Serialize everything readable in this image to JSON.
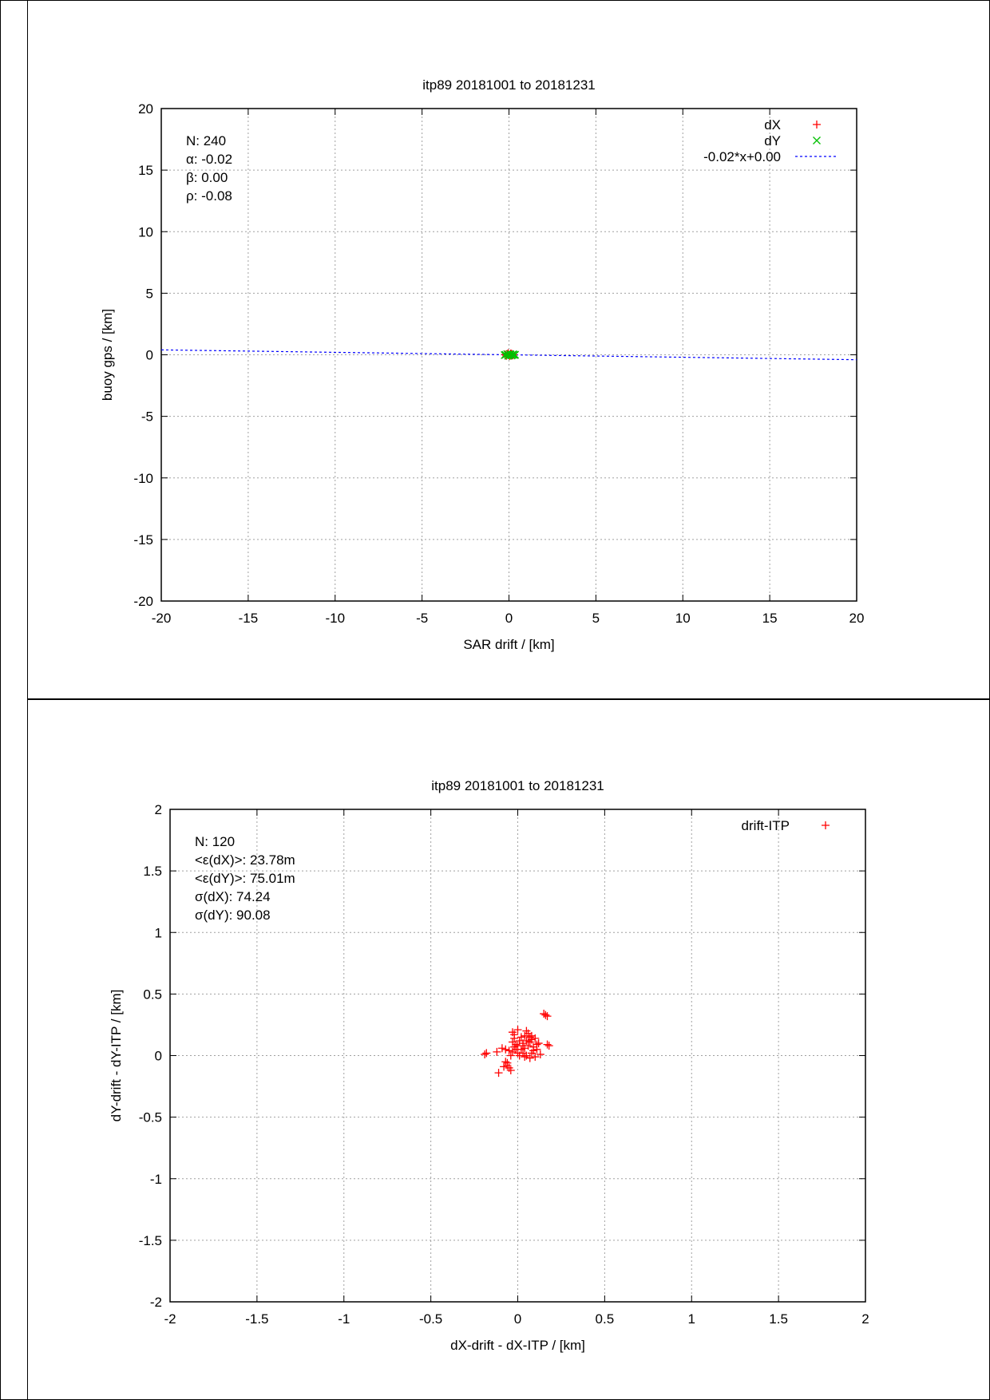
{
  "chart_data": [
    {
      "type": "scatter",
      "title": "itp89 20181001 to 20181231",
      "xlabel": "SAR drift / [km]",
      "ylabel": "buoy gps / [km]",
      "xlim": [
        -20,
        20
      ],
      "ylim": [
        -20,
        20
      ],
      "xticks": [
        "-20",
        "-15",
        "-10",
        "-5",
        "0",
        "5",
        "10",
        "15",
        "20"
      ],
      "yticks": [
        "-20",
        "-15",
        "-10",
        "-5",
        "0",
        "5",
        "10",
        "15",
        "20"
      ],
      "xtick_values": [
        -20,
        -15,
        -10,
        -5,
        0,
        5,
        10,
        15,
        20
      ],
      "ytick_values": [
        -20,
        -15,
        -10,
        -5,
        0,
        5,
        10,
        15,
        20
      ],
      "grid": true,
      "legend_position": "top-right",
      "stats": [
        "N: 240",
        "α: -0.02",
        "β: 0.00",
        "ρ: -0.08"
      ],
      "series": [
        {
          "name": "dX",
          "marker": "+",
          "color": "#ff0000",
          "points": [
            [
              -0.1,
              0.05
            ],
            [
              0.0,
              0.0
            ],
            [
              0.1,
              0.1
            ],
            [
              0.2,
              -0.05
            ],
            [
              -0.2,
              0.02
            ],
            [
              0.05,
              -0.1
            ],
            [
              0.15,
              0.08
            ],
            [
              -0.05,
              0.12
            ],
            [
              0.25,
              0.0
            ],
            [
              -0.15,
              -0.08
            ]
          ]
        },
        {
          "name": "dY",
          "marker": "x",
          "color": "#00c000",
          "points": [
            [
              -0.2,
              0.0
            ],
            [
              -0.1,
              0.05
            ],
            [
              0.0,
              -0.05
            ],
            [
              0.1,
              0.02
            ],
            [
              0.2,
              0.0
            ],
            [
              0.3,
              -0.02
            ],
            [
              -0.25,
              -0.03
            ],
            [
              0.05,
              0.06
            ],
            [
              0.15,
              -0.06
            ],
            [
              -0.05,
              -0.08
            ],
            [
              0.25,
              0.04
            ],
            [
              0.35,
              0.0
            ]
          ]
        }
      ],
      "fit": {
        "name": "-0.02*x+0.00",
        "color": "#0000ff",
        "slope": -0.02,
        "intercept": 0.0
      }
    },
    {
      "type": "scatter",
      "title": "itp89 20181001 to 20181231",
      "xlabel": "dX-drift - dX-ITP / [km]",
      "ylabel": "dY-drift - dY-ITP / [km]",
      "xlim": [
        -2,
        2
      ],
      "ylim": [
        -2,
        2
      ],
      "xticks": [
        "-2",
        "-1.5",
        "-1",
        "-0.5",
        "0",
        "0.5",
        "1",
        "1.5",
        "2"
      ],
      "yticks": [
        "-2",
        "-1.5",
        "-1",
        "-0.5",
        "0",
        "0.5",
        "1",
        "1.5",
        "2"
      ],
      "xtick_values": [
        -2,
        -1.5,
        -1,
        -0.5,
        0,
        0.5,
        1,
        1.5,
        2
      ],
      "ytick_values": [
        -2,
        -1.5,
        -1,
        -0.5,
        0,
        0.5,
        1,
        1.5,
        2
      ],
      "grid": true,
      "legend_position": "top-right",
      "stats": [
        "N: 120",
        "<ε(dX)>:  23.78m",
        "<ε(dY)>: 75.01m",
        "σ(dX):  74.24",
        "σ(dY):  90.08"
      ],
      "series": [
        {
          "name": "drift-ITP",
          "marker": "+",
          "color": "#ff0000",
          "points": [
            [
              0.16,
              0.33
            ],
            [
              0.17,
              0.32
            ],
            [
              0.15,
              0.34
            ],
            [
              -0.03,
              0.19
            ],
            [
              -0.02,
              0.17
            ],
            [
              0.05,
              0.2
            ],
            [
              0.06,
              0.18
            ],
            [
              0.04,
              0.16
            ],
            [
              0.07,
              0.15
            ],
            [
              0.08,
              0.13
            ],
            [
              0.1,
              0.14
            ],
            [
              0.12,
              0.1
            ],
            [
              0.05,
              0.12
            ],
            [
              0.03,
              0.1
            ],
            [
              0.01,
              0.12
            ],
            [
              0.0,
              0.08
            ],
            [
              -0.02,
              0.07
            ],
            [
              -0.01,
              0.05
            ],
            [
              0.02,
              0.05
            ],
            [
              0.04,
              0.06
            ],
            [
              0.06,
              0.08
            ],
            [
              0.09,
              0.07
            ],
            [
              0.11,
              0.05
            ],
            [
              0.08,
              0.02
            ],
            [
              0.05,
              0.0
            ],
            [
              0.03,
              0.02
            ],
            [
              0.0,
              0.02
            ],
            [
              -0.03,
              0.03
            ],
            [
              -0.05,
              0.04
            ],
            [
              -0.07,
              0.05
            ],
            [
              -0.09,
              0.06
            ],
            [
              -0.12,
              0.03
            ],
            [
              -0.18,
              0.02
            ],
            [
              -0.19,
              0.01
            ],
            [
              -0.07,
              -0.05
            ],
            [
              -0.06,
              -0.08
            ],
            [
              -0.05,
              -0.1
            ],
            [
              -0.08,
              -0.09
            ],
            [
              -0.04,
              -0.12
            ],
            [
              -0.11,
              -0.14
            ],
            [
              0.18,
              0.08
            ],
            [
              0.17,
              0.09
            ],
            [
              0.1,
              -0.01
            ],
            [
              0.07,
              -0.02
            ],
            [
              0.04,
              -0.01
            ],
            [
              -0.01,
              0.09
            ],
            [
              0.02,
              0.15
            ],
            [
              0.07,
              0.11
            ],
            [
              0.09,
              0.04
            ],
            [
              0.13,
              0.01
            ],
            [
              -0.02,
              0.14
            ],
            [
              0.0,
              0.21
            ],
            [
              0.06,
              0.12
            ],
            [
              0.03,
              0.08
            ],
            [
              -0.04,
              0.0
            ],
            [
              -0.06,
              -0.06
            ],
            [
              0.11,
              0.09
            ],
            [
              0.08,
              0.16
            ],
            [
              0.01,
              0.0
            ],
            [
              -0.03,
              0.11
            ]
          ]
        }
      ]
    }
  ]
}
